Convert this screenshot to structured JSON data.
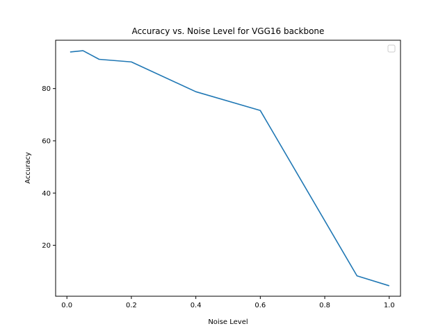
{
  "chart_data": {
    "type": "line",
    "title": "Accuracy vs. Noise Level for VGG16 backbone",
    "xlabel": "Noise Level",
    "ylabel": "Accuracy",
    "xlim": [
      -0.035,
      1.035
    ],
    "ylim": [
      0.5,
      98.5
    ],
    "xticks": [
      0.0,
      0.2,
      0.4,
      0.6,
      0.8,
      1.0
    ],
    "xtick_labels": [
      "0.0",
      "0.2",
      "0.4",
      "0.6",
      "0.8",
      "1.0"
    ],
    "yticks": [
      20,
      40,
      60,
      80
    ],
    "ytick_labels": [
      "20",
      "40",
      "60",
      "80"
    ],
    "grid": false,
    "legend": {
      "placement": "top-right",
      "entries": []
    },
    "series": [
      {
        "color": "#1f77b4",
        "x": [
          0.01,
          0.05,
          0.1,
          0.2,
          0.4,
          0.6,
          0.9,
          1.0
        ],
        "y": [
          94.0,
          94.5,
          91.2,
          90.2,
          78.8,
          71.6,
          8.3,
          4.5
        ]
      }
    ]
  }
}
